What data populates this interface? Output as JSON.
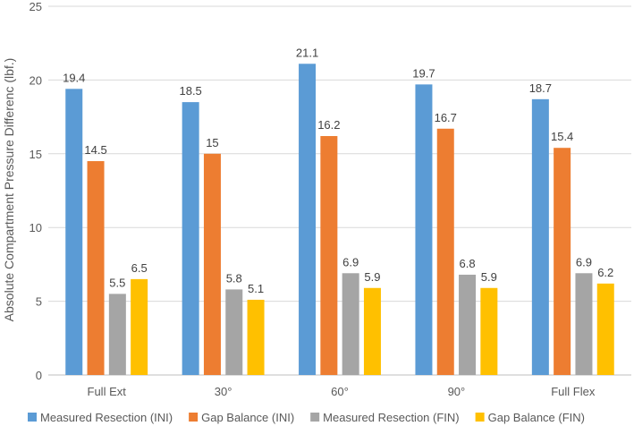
{
  "chart_data": {
    "type": "bar",
    "title": "",
    "xlabel": "",
    "ylabel": "Absolute Compartment Pressure Differenc (lbf.)",
    "ylim": [
      0,
      25
    ],
    "yticks": [
      0,
      5,
      10,
      15,
      20,
      25
    ],
    "grid": true,
    "legend": "bottom",
    "categories": [
      "Full Ext",
      "30°",
      "60°",
      "90°",
      "Full Flex"
    ],
    "series": [
      {
        "name": "Measured Resection (INI)",
        "color": "#5b9bd5",
        "values": [
          19.4,
          18.5,
          21.1,
          19.7,
          18.7
        ],
        "labels": [
          "19.4",
          "18.5",
          "21.1",
          "19.7",
          "18.7"
        ]
      },
      {
        "name": "Gap Balance (INI)",
        "color": "#ed7d31",
        "values": [
          14.5,
          15,
          16.2,
          16.7,
          15.4
        ],
        "labels": [
          "14.5",
          "15",
          "16.2",
          "16.7",
          "15.4"
        ]
      },
      {
        "name": "Measured Resection (FIN)",
        "color": "#a5a5a5",
        "values": [
          5.5,
          5.8,
          6.9,
          6.8,
          6.9
        ],
        "labels": [
          "5.5",
          "5.8",
          "6.9",
          "6.8",
          "6.9"
        ]
      },
      {
        "name": "Gap Balance (FIN)",
        "color": "#ffc000",
        "values": [
          6.5,
          5.1,
          5.9,
          5.9,
          6.2
        ],
        "labels": [
          "6.5",
          "5.1",
          "5.9",
          "5.9",
          "6.2"
        ]
      }
    ]
  }
}
